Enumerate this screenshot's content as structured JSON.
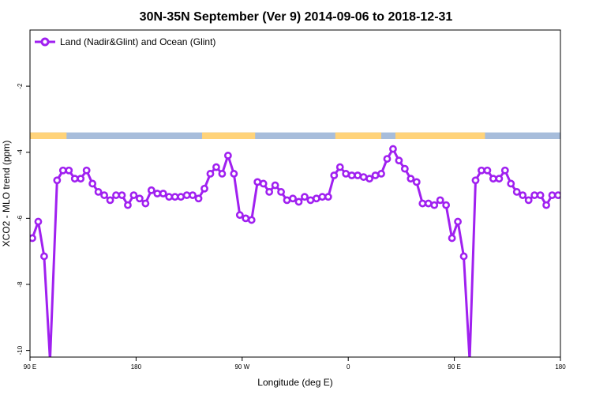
{
  "chart_data": {
    "type": "line",
    "title": "30N-35N September (Ver 9)   2014-09-06 to 2018-12-31",
    "xlabel": "Longitude (deg E)",
    "ylabel": "XCO2 - MLO trend (ppm)",
    "xticks": [
      {
        "value": 90,
        "label": "90 E"
      },
      {
        "value": 180,
        "label": "180"
      },
      {
        "value": 270,
        "label": "90 W"
      },
      {
        "value": 360,
        "label": "0"
      },
      {
        "value": 450,
        "label": "90 E"
      },
      {
        "value": 540,
        "label": "180"
      }
    ],
    "yticks": [
      -10,
      -8,
      -6,
      -4,
      -2
    ],
    "xlim": [
      90,
      540
    ],
    "ylim": [
      -10.2,
      -0.3
    ],
    "grid": false,
    "legend_position": "top-left",
    "series": [
      {
        "name": "Land (Nadir&Glint) and Ocean (Glint)",
        "color": "#a020f0",
        "x": [
          92,
          97,
          102,
          107,
          113,
          118,
          123,
          128,
          133,
          138,
          143,
          148,
          153,
          158,
          163,
          168,
          173,
          178,
          183,
          188,
          193,
          198,
          203,
          208,
          213,
          218,
          223,
          228,
          233,
          238,
          243,
          248,
          253,
          258,
          263,
          268,
          273,
          278,
          283,
          288,
          293,
          298,
          303,
          308,
          313,
          318,
          323,
          328,
          333,
          338,
          343,
          348,
          353,
          358,
          363,
          368,
          373,
          378,
          383,
          388,
          393,
          398,
          403,
          408,
          413,
          418,
          423,
          428,
          433,
          438,
          443,
          448,
          453,
          458,
          463,
          468,
          473,
          478,
          483,
          488,
          493,
          498,
          503,
          508,
          513,
          518,
          523,
          528,
          533,
          538
        ],
        "y": [
          -6.6,
          -6.1,
          -7.15,
          -10.3,
          -4.85,
          -4.55,
          -4.55,
          -4.8,
          -4.8,
          -4.55,
          -4.95,
          -5.2,
          -5.3,
          -5.45,
          -5.3,
          -5.3,
          -5.6,
          -5.3,
          -5.4,
          -5.55,
          -5.15,
          -5.25,
          -5.25,
          -5.35,
          -5.35,
          -5.35,
          -5.3,
          -5.3,
          -5.4,
          -5.1,
          -4.65,
          -4.45,
          -4.65,
          -4.1,
          -4.65,
          -5.9,
          -6.0,
          -6.05,
          -4.9,
          -4.95,
          -5.2,
          -5.0,
          -5.2,
          -5.45,
          -5.4,
          -5.5,
          -5.35,
          -5.45,
          -5.4,
          -5.35,
          -5.35,
          -4.7,
          -4.45,
          -4.65,
          -4.7,
          -4.7,
          -4.75,
          -4.8,
          -4.7,
          -4.65,
          -4.2,
          -3.9,
          -4.25,
          -4.5,
          -4.8,
          -4.9,
          -5.55,
          -5.55,
          -5.6,
          -5.45,
          -5.6,
          -6.6,
          -6.1,
          -7.15,
          -10.3,
          -4.85,
          -4.55,
          -4.55,
          -4.8,
          -4.8,
          -4.55,
          -4.95,
          -5.2,
          -5.3,
          -5.45,
          -5.3,
          -5.3,
          -5.6,
          -5.3,
          -5.3
        ]
      }
    ],
    "surface_strip": {
      "y_top": -3.4,
      "y_bottom": -3.6,
      "land_color": "#ffd37a",
      "ocean_color": "#a7bddb",
      "land_ranges": [
        [
          90,
          121
        ],
        [
          236,
          281
        ],
        [
          349,
          388
        ],
        [
          400,
          476
        ]
      ]
    }
  }
}
